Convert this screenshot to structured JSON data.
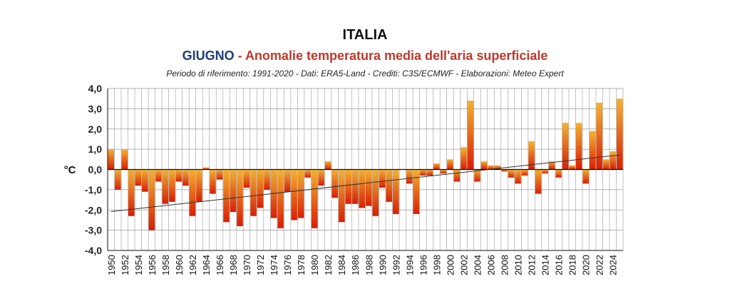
{
  "title": "ITALIA",
  "subtitle_month": "GIUGNO",
  "subtitle_rest": " - Anomalie temperatura media dell'aria superficiale",
  "note": "Periodo di riferimento: 1991-2020 - Dati: ERA5-Land - Crediti: C3S/ECMWF - Elaborazioni: Meteo Expert",
  "colors": {
    "bar_top": "#f2b233",
    "bar_base": "#d81e05",
    "trend": "#333333",
    "grid": "#999999"
  },
  "chart_data": {
    "type": "bar",
    "ylabel": "°C",
    "ylim": [
      -4,
      4
    ],
    "yticks": [
      "-4,0",
      "-3,0",
      "-2,0",
      "-1,0",
      "0,0",
      "1,0",
      "2,0",
      "3,0",
      "4,0"
    ],
    "x": [
      1950,
      1951,
      1952,
      1953,
      1954,
      1955,
      1956,
      1957,
      1958,
      1959,
      1960,
      1961,
      1962,
      1963,
      1964,
      1965,
      1966,
      1967,
      1968,
      1969,
      1970,
      1971,
      1972,
      1973,
      1974,
      1975,
      1976,
      1977,
      1978,
      1979,
      1980,
      1981,
      1982,
      1983,
      1984,
      1985,
      1986,
      1987,
      1988,
      1989,
      1990,
      1991,
      1992,
      1993,
      1994,
      1995,
      1996,
      1997,
      1998,
      1999,
      2000,
      2001,
      2002,
      2003,
      2004,
      2005,
      2006,
      2007,
      2008,
      2009,
      2010,
      2011,
      2012,
      2013,
      2014,
      2015,
      2016,
      2017,
      2018,
      2019,
      2020,
      2021,
      2022,
      2023,
      2024,
      2025
    ],
    "values": [
      1.0,
      -1.0,
      1.0,
      -2.3,
      -0.8,
      -1.1,
      -3.0,
      -0.6,
      -1.7,
      -1.6,
      -0.6,
      -0.8,
      -2.3,
      -1.6,
      0.1,
      -1.2,
      -0.5,
      -2.6,
      -2.1,
      -2.8,
      -0.9,
      -2.3,
      -1.9,
      -1.0,
      -2.4,
      -2.9,
      -1.1,
      -2.5,
      -2.4,
      -0.4,
      -2.9,
      -0.8,
      0.4,
      -1.4,
      -2.6,
      -1.7,
      -1.7,
      -1.9,
      -1.8,
      -2.3,
      -0.9,
      -1.6,
      -2.2,
      0.0,
      -0.7,
      -2.2,
      -0.3,
      -0.3,
      0.3,
      -0.2,
      0.5,
      -0.6,
      1.1,
      3.4,
      -0.6,
      0.4,
      0.2,
      0.2,
      -0.1,
      -0.4,
      -0.7,
      -0.3,
      1.4,
      -1.2,
      -0.2,
      0.4,
      -0.4,
      2.3,
      0.2,
      2.3,
      -0.7,
      1.9,
      3.3,
      0.5,
      0.9,
      3.5
    ],
    "xtick_labels": [
      "1950",
      "1952",
      "1954",
      "1956",
      "1958",
      "1960",
      "1962",
      "1964",
      "1966",
      "1968",
      "1970",
      "1972",
      "1974",
      "1976",
      "1978",
      "1980",
      "1982",
      "1984",
      "1986",
      "1988",
      "1990",
      "1992",
      "1994",
      "1996",
      "1998",
      "2000",
      "2002",
      "2004",
      "2006",
      "2008",
      "2010",
      "2012",
      "2014",
      "2016",
      "2018",
      "2020",
      "2022",
      "2024"
    ],
    "trend": {
      "start": [
        1950,
        -2.08
      ],
      "end": [
        2025,
        0.72
      ]
    },
    "grid": true
  }
}
